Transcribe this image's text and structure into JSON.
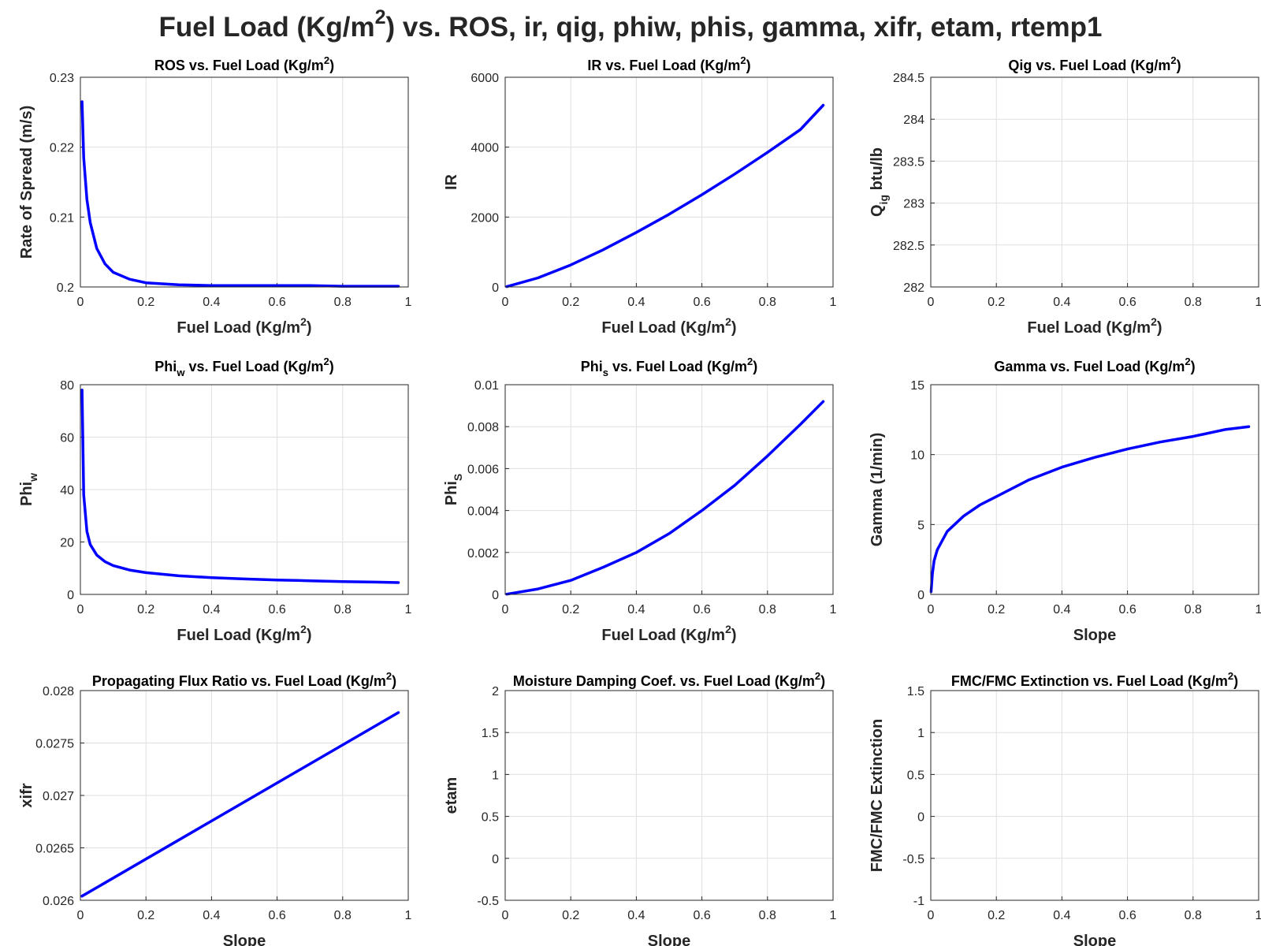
{
  "figure": {
    "title": "Fuel Load (Kg/m²) vs. ROS, ir, qig, phiw, phis, gamma, xifr, etam, rtemp1",
    "colors": {
      "line": "#0000ff",
      "axis": "#262626",
      "grid": "#dfdfdf"
    }
  },
  "chart_data": [
    {
      "type": "line",
      "title": "ROS vs. Fuel Load (Kg/m²)",
      "xlabel": "Fuel Load (Kg/m²)",
      "ylabel": "Rate of Spread (m/s)",
      "xlim": [
        0,
        1
      ],
      "ylim": [
        0.2,
        0.23
      ],
      "xticks": [
        "0",
        "0.2",
        "0.4",
        "0.6",
        "0.8",
        "1"
      ],
      "yticks": [
        "0.2",
        "0.21",
        "0.22",
        "0.23"
      ],
      "grid": true,
      "series": [
        {
          "x": [
            0.005,
            0.01,
            0.02,
            0.03,
            0.05,
            0.075,
            0.1,
            0.15,
            0.2,
            0.3,
            0.4,
            0.5,
            0.6,
            0.7,
            0.8,
            0.9,
            0.97
          ],
          "y": [
            0.2265,
            0.2185,
            0.2125,
            0.2092,
            0.2055,
            0.2033,
            0.2021,
            0.2011,
            0.2006,
            0.2003,
            0.2002,
            0.2002,
            0.2002,
            0.2002,
            0.2001,
            0.2001,
            0.2001
          ]
        }
      ]
    },
    {
      "type": "line",
      "title": "IR vs. Fuel Load (Kg/m²)",
      "xlabel": "Fuel Load (Kg/m²)",
      "ylabel": "IR",
      "xlim": [
        0,
        1
      ],
      "ylim": [
        0,
        6000
      ],
      "xticks": [
        "0",
        "0.2",
        "0.4",
        "0.6",
        "0.8",
        "1"
      ],
      "yticks": [
        "0",
        "2000",
        "4000",
        "6000"
      ],
      "grid": true,
      "series": [
        {
          "x": [
            0.005,
            0.1,
            0.2,
            0.3,
            0.4,
            0.5,
            0.6,
            0.7,
            0.8,
            0.9,
            0.97
          ],
          "y": [
            10,
            260,
            630,
            1070,
            1560,
            2080,
            2640,
            3230,
            3850,
            4500,
            5200
          ]
        }
      ]
    },
    {
      "type": "line",
      "title": "Qig vs. Fuel Load (Kg/m²)",
      "xlabel": "Fuel Load (Kg/m²)",
      "ylabel": "Q_ig btu/lb",
      "xlim": [
        0,
        1
      ],
      "ylim": [
        282,
        284.5
      ],
      "xticks": [
        "0",
        "0.2",
        "0.4",
        "0.6",
        "0.8",
        "1"
      ],
      "yticks": [
        "282",
        "282.5",
        "283",
        "283.5",
        "284",
        "284.5"
      ],
      "grid": true,
      "series": []
    },
    {
      "type": "line",
      "title": "Phi_w vs. Fuel Load (Kg/m²)",
      "xlabel": "Fuel Load (Kg/m²)",
      "ylabel": "Phi_w",
      "xlim": [
        0,
        1
      ],
      "ylim": [
        0,
        80
      ],
      "xticks": [
        "0",
        "0.2",
        "0.4",
        "0.6",
        "0.8",
        "1"
      ],
      "yticks": [
        "0",
        "20",
        "40",
        "60",
        "80"
      ],
      "grid": true,
      "series": [
        {
          "x": [
            0.005,
            0.01,
            0.02,
            0.03,
            0.05,
            0.075,
            0.1,
            0.15,
            0.2,
            0.3,
            0.4,
            0.5,
            0.6,
            0.7,
            0.8,
            0.9,
            0.97
          ],
          "y": [
            78,
            38,
            24,
            19,
            15,
            12.5,
            11,
            9.3,
            8.3,
            7.1,
            6.4,
            5.9,
            5.5,
            5.2,
            4.9,
            4.7,
            4.5
          ]
        }
      ]
    },
    {
      "type": "line",
      "title": "Phi_s vs. Fuel Load (Kg/m²)",
      "xlabel": "Fuel Load (Kg/m²)",
      "ylabel": "Phi_S",
      "xlim": [
        0,
        1
      ],
      "ylim": [
        0,
        0.01
      ],
      "xticks": [
        "0",
        "0.2",
        "0.4",
        "0.6",
        "0.8",
        "1"
      ],
      "yticks": [
        "0",
        "0.002",
        "0.004",
        "0.006",
        "0.008",
        "0.01"
      ],
      "grid": true,
      "series": [
        {
          "x": [
            0.005,
            0.1,
            0.2,
            0.3,
            0.4,
            0.5,
            0.6,
            0.7,
            0.8,
            0.9,
            0.97
          ],
          "y": [
            1e-05,
            0.00026,
            0.00067,
            0.0013,
            0.002,
            0.0029,
            0.004,
            0.0052,
            0.0066,
            0.0081,
            0.0092
          ]
        }
      ]
    },
    {
      "type": "line",
      "title": "Gamma vs. Fuel Load (Kg/m²)",
      "xlabel": "Slope",
      "ylabel": "Gamma (1/min)",
      "xlim": [
        0,
        1
      ],
      "ylim": [
        0,
        15
      ],
      "xticks": [
        "0",
        "0.2",
        "0.4",
        "0.6",
        "0.8",
        "1"
      ],
      "yticks": [
        "0",
        "5",
        "10",
        "15"
      ],
      "grid": true,
      "series": [
        {
          "x": [
            0.001,
            0.005,
            0.01,
            0.02,
            0.05,
            0.1,
            0.15,
            0.2,
            0.3,
            0.4,
            0.5,
            0.6,
            0.7,
            0.8,
            0.9,
            0.97
          ],
          "y": [
            0.2,
            1.5,
            2.4,
            3.2,
            4.5,
            5.6,
            6.4,
            7.0,
            8.2,
            9.1,
            9.8,
            10.4,
            10.9,
            11.3,
            11.8,
            12.0
          ]
        }
      ]
    },
    {
      "type": "line",
      "title": "Propagating Flux Ratio vs. Fuel Load (Kg/m²)",
      "xlabel": "Slope",
      "ylabel": "xifr",
      "xlim": [
        0,
        1
      ],
      "ylim": [
        0.026,
        0.028
      ],
      "xticks": [
        "0",
        "0.2",
        "0.4",
        "0.6",
        "0.8",
        "1"
      ],
      "yticks": [
        "0.026",
        "0.0265",
        "0.027",
        "0.0275",
        "0.028"
      ],
      "grid": true,
      "series": [
        {
          "x": [
            0.005,
            0.97
          ],
          "y": [
            0.02604,
            0.02779
          ]
        }
      ]
    },
    {
      "type": "line",
      "title": "Moisture Damping Coef. vs. Fuel Load (Kg/m²)",
      "xlabel": "Slope",
      "ylabel": "etam",
      "xlim": [
        0,
        1
      ],
      "ylim": [
        -0.5,
        2
      ],
      "xticks": [
        "0",
        "0.2",
        "0.4",
        "0.6",
        "0.8",
        "1"
      ],
      "yticks": [
        "-0.5",
        "0",
        "0.5",
        "1",
        "1.5",
        "2"
      ],
      "grid": true,
      "series": []
    },
    {
      "type": "line",
      "title": "FMC/FMC Extinction vs. Fuel Load (Kg/m²)",
      "xlabel": "Slope",
      "ylabel": "FMC/FMC Extinction",
      "xlim": [
        0,
        1
      ],
      "ylim": [
        -1,
        1.5
      ],
      "xticks": [
        "0",
        "0.2",
        "0.4",
        "0.6",
        "0.8",
        "1"
      ],
      "yticks": [
        "-1",
        "-0.5",
        "0",
        "0.5",
        "1",
        "1.5"
      ],
      "grid": true,
      "series": []
    }
  ]
}
